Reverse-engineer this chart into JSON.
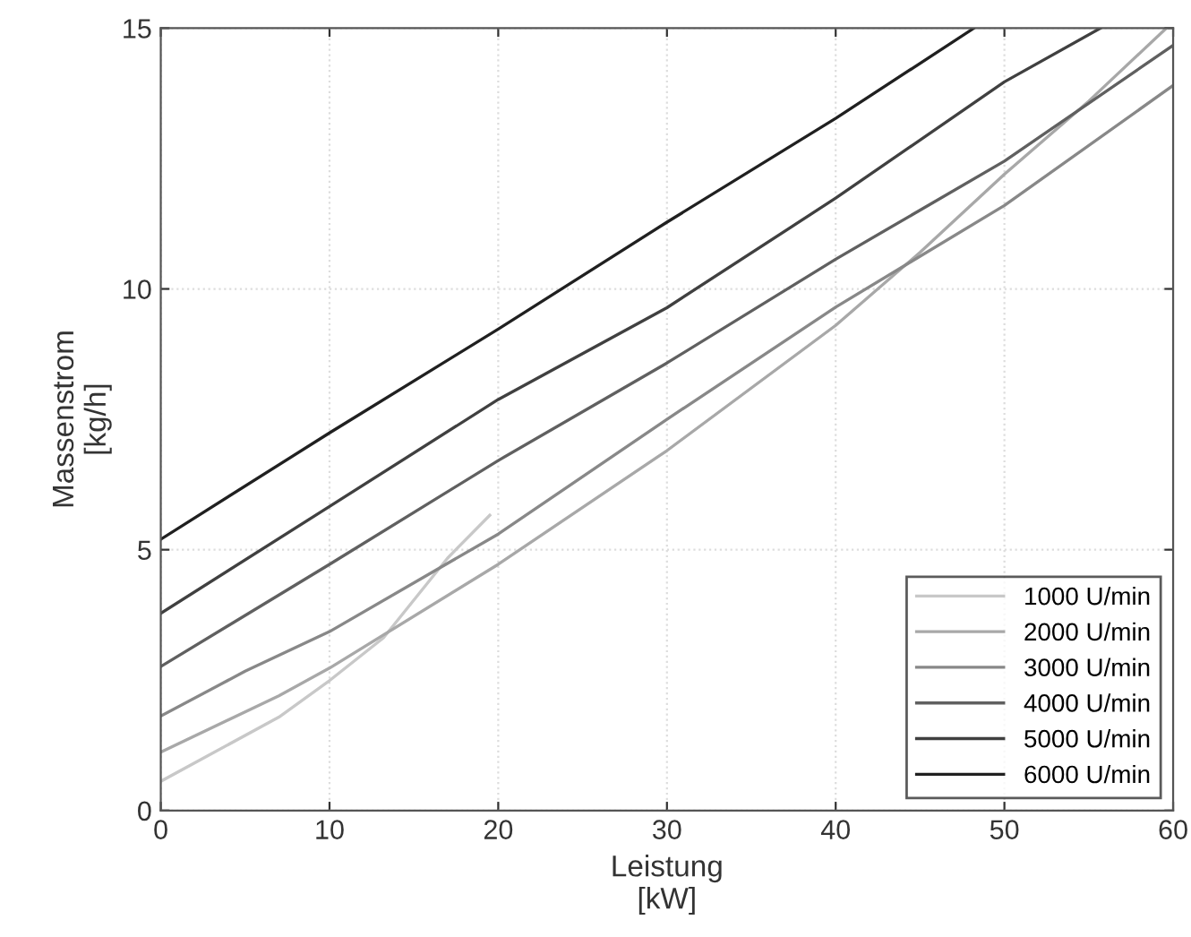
{
  "chart_data": {
    "type": "line",
    "xlabel": "Leistung\n[kW]",
    "ylabel": "Massenstrom\n[kg/h]",
    "xlim": [
      0,
      60
    ],
    "ylim": [
      0,
      15
    ],
    "xticks": [
      0,
      10,
      20,
      30,
      40,
      50,
      60
    ],
    "yticks": [
      0,
      5,
      10,
      15
    ],
    "grid": true,
    "legend": "bottom right",
    "marker": "none",
    "line_style": "solid",
    "series": [
      {
        "name": "1000 U/min",
        "color": "#c8c8c8",
        "x": [
          0,
          7,
          10,
          13.2,
          17,
          19.5
        ],
        "values": [
          0.56,
          1.79,
          2.49,
          3.31,
          4.84,
          5.66
        ]
      },
      {
        "name": "2000 U/min",
        "color": "#a8a8a8",
        "x": [
          0,
          7,
          10,
          20,
          30,
          40,
          45,
          50,
          55,
          59.6
        ],
        "values": [
          1.12,
          2.2,
          2.73,
          4.72,
          6.9,
          9.3,
          10.7,
          12.2,
          13.6,
          15
        ]
      },
      {
        "name": "3000 U/min",
        "color": "#888888",
        "x": [
          0,
          5,
          10,
          20,
          30,
          40,
          50,
          60
        ],
        "values": [
          1.81,
          2.67,
          3.43,
          5.3,
          7.5,
          9.65,
          11.6,
          13.9
        ]
      },
      {
        "name": "4000 U/min",
        "color": "#606060",
        "x": [
          0,
          10,
          20,
          30,
          40,
          50,
          60
        ],
        "values": [
          2.76,
          4.72,
          6.71,
          8.58,
          10.57,
          12.45,
          14.67
        ]
      },
      {
        "name": "5000 U/min",
        "color": "#404040",
        "x": [
          0,
          10,
          20,
          30,
          40,
          50,
          55.7
        ],
        "values": [
          3.78,
          5.83,
          7.88,
          9.64,
          11.74,
          13.97,
          15
        ]
      },
      {
        "name": "6000 U/min",
        "color": "#202020",
        "x": [
          0,
          10,
          20,
          30,
          40,
          48.2
        ],
        "values": [
          5.2,
          7.24,
          9.23,
          11.28,
          13.27,
          15
        ]
      }
    ]
  }
}
